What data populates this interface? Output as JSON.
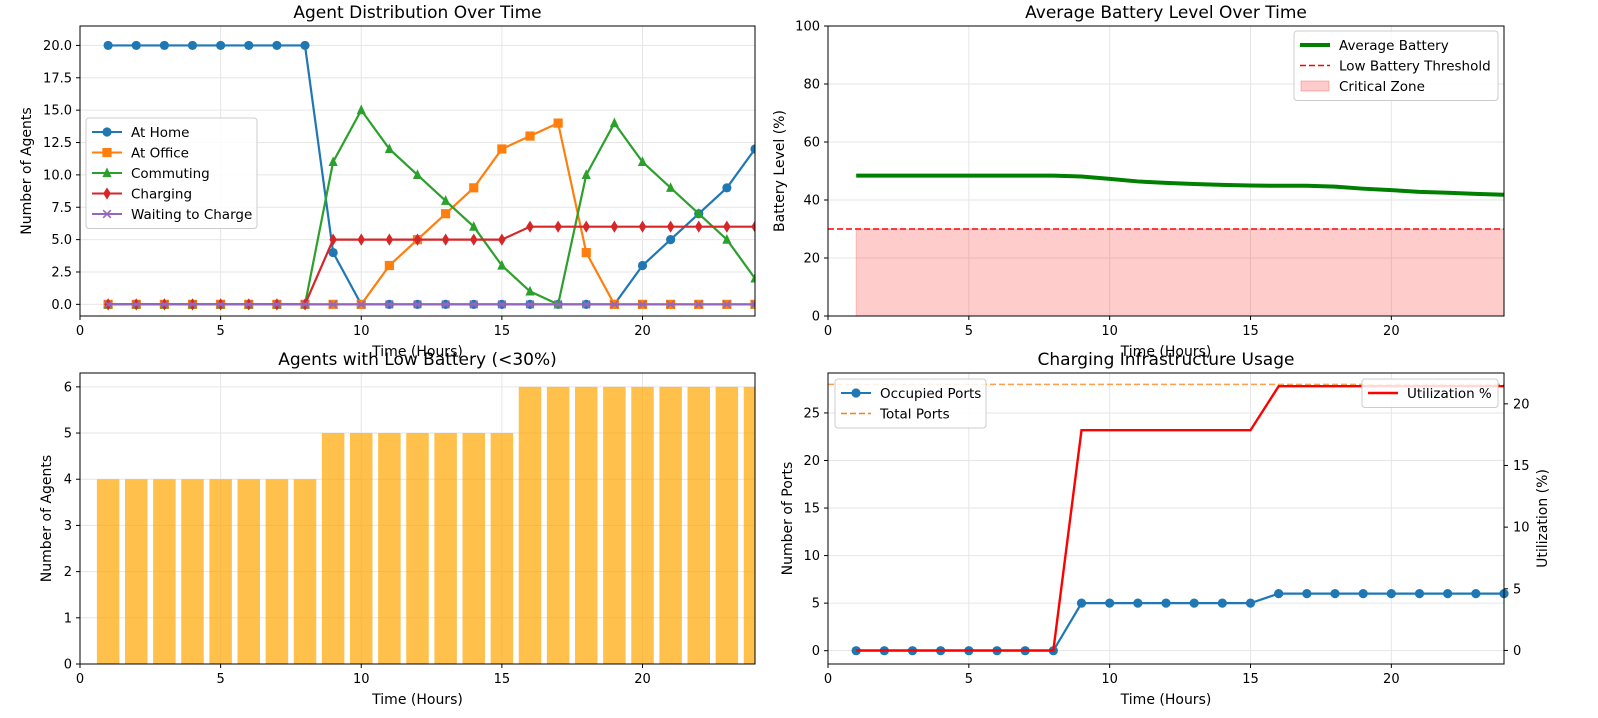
{
  "chart_data": [
    {
      "id": "dist",
      "type": "line",
      "title": "Agent Distribution Over Time",
      "xlabel": "Time (Hours)",
      "ylabel": "Number of Agents",
      "xlim": [
        0,
        24
      ],
      "ylim": [
        -0.9,
        21.5
      ],
      "xticks": [
        0,
        5,
        10,
        15,
        20
      ],
      "yticks": [
        0,
        2.5,
        5,
        7.5,
        10,
        12.5,
        15,
        17.5,
        20
      ],
      "ytick_labels": [
        "0.0",
        "2.5",
        "5.0",
        "7.5",
        "10.0",
        "12.5",
        "15.0",
        "17.5",
        "20.0"
      ],
      "grid": true,
      "legend_position": "center-left",
      "x": [
        1,
        2,
        3,
        4,
        5,
        6,
        7,
        8,
        9,
        10,
        11,
        12,
        13,
        14,
        15,
        16,
        17,
        18,
        19,
        20,
        21,
        22,
        23,
        24
      ],
      "series": [
        {
          "name": "At Home",
          "color": "#1f77b4",
          "marker": "circle",
          "values": [
            20,
            20,
            20,
            20,
            20,
            20,
            20,
            20,
            4,
            0,
            0,
            0,
            0,
            0,
            0,
            0,
            0,
            0,
            0,
            3,
            5,
            7,
            9,
            12
          ]
        },
        {
          "name": "At Office",
          "color": "#ff7f0e",
          "marker": "square",
          "values": [
            0,
            0,
            0,
            0,
            0,
            0,
            0,
            0,
            0,
            0,
            3,
            5,
            7,
            9,
            12,
            13,
            14,
            4,
            0,
            0,
            0,
            0,
            0,
            0
          ]
        },
        {
          "name": "Commuting",
          "color": "#2ca02c",
          "marker": "triangle",
          "values": [
            0,
            0,
            0,
            0,
            0,
            0,
            0,
            0,
            11,
            15,
            12,
            10,
            8,
            6,
            3,
            1,
            0,
            10,
            14,
            11,
            9,
            7,
            5,
            2
          ]
        },
        {
          "name": "Charging",
          "color": "#d62728",
          "marker": "diamond",
          "values": [
            0,
            0,
            0,
            0,
            0,
            0,
            0,
            0,
            5,
            5,
            5,
            5,
            5,
            5,
            5,
            6,
            6,
            6,
            6,
            6,
            6,
            6,
            6,
            6
          ]
        },
        {
          "name": "Waiting to Charge",
          "color": "#9467bd",
          "marker": "x",
          "values": [
            0,
            0,
            0,
            0,
            0,
            0,
            0,
            0,
            0,
            0,
            0,
            0,
            0,
            0,
            0,
            0,
            0,
            0,
            0,
            0,
            0,
            0,
            0,
            0
          ]
        }
      ]
    },
    {
      "id": "battery",
      "type": "line",
      "title": "Average Battery Level Over Time",
      "xlabel": "Time (Hours)",
      "ylabel": "Battery Level (%)",
      "xlim": [
        0,
        24
      ],
      "ylim": [
        0,
        100
      ],
      "xticks": [
        0,
        5,
        10,
        15,
        20
      ],
      "yticks": [
        0,
        20,
        40,
        60,
        80,
        100
      ],
      "grid": true,
      "legend_position": "top-right",
      "x": [
        1,
        2,
        3,
        4,
        5,
        6,
        7,
        8,
        9,
        10,
        11,
        12,
        13,
        14,
        15,
        16,
        17,
        18,
        19,
        20,
        21,
        22,
        23,
        24
      ],
      "series": [
        {
          "name": "Average Battery",
          "color": "#008000",
          "style": "solid",
          "values": [
            48.4,
            48.4,
            48.4,
            48.4,
            48.4,
            48.4,
            48.4,
            48.4,
            48.1,
            47.3,
            46.4,
            45.9,
            45.5,
            45.2,
            45.0,
            44.9,
            44.9,
            44.6,
            43.9,
            43.4,
            42.8,
            42.5,
            42.1,
            41.8
          ]
        },
        {
          "name": "Low Battery Threshold",
          "color": "#ff0000",
          "style": "dashed",
          "constant": 30
        },
        {
          "name": "Critical Zone",
          "color": "#ff0000",
          "style": "fill",
          "from": 0,
          "to": 30,
          "x_range": [
            1,
            24
          ]
        }
      ]
    },
    {
      "id": "lowbat",
      "type": "bar",
      "title": "Agents with Low Battery (<30%)",
      "xlabel": "Time (Hours)",
      "ylabel": "Number of Agents",
      "xlim": [
        0,
        24
      ],
      "ylim": [
        0,
        6.3
      ],
      "xticks": [
        0,
        5,
        10,
        15,
        20
      ],
      "yticks": [
        0,
        1,
        2,
        3,
        4,
        5,
        6
      ],
      "grid": true,
      "color": "#ffa500",
      "categories": [
        1,
        2,
        3,
        4,
        5,
        6,
        7,
        8,
        9,
        10,
        11,
        12,
        13,
        14,
        15,
        16,
        17,
        18,
        19,
        20,
        21,
        22,
        23,
        24
      ],
      "values": [
        4,
        4,
        4,
        4,
        4,
        4,
        4,
        4,
        5,
        5,
        5,
        5,
        5,
        5,
        5,
        6,
        6,
        6,
        6,
        6,
        6,
        6,
        6,
        6
      ]
    },
    {
      "id": "infra",
      "type": "line",
      "title": "Charging Infrastructure Usage",
      "xlabel": "Time (Hours)",
      "ylabel": "Number of Ports",
      "ylabel_right": "Utilization (%)",
      "xlim": [
        0,
        24
      ],
      "ylim": [
        -1.4,
        29.2
      ],
      "ylim_right": [
        -1.1,
        22.5
      ],
      "xticks": [
        0,
        5,
        10,
        15,
        20
      ],
      "yticks": [
        0,
        5,
        10,
        15,
        20,
        25
      ],
      "yticks_right": [
        0,
        5,
        10,
        15,
        20
      ],
      "grid": true,
      "legend_position": "top-left",
      "legend_right_position": "top-right",
      "x": [
        1,
        2,
        3,
        4,
        5,
        6,
        7,
        8,
        9,
        10,
        11,
        12,
        13,
        14,
        15,
        16,
        17,
        18,
        19,
        20,
        21,
        22,
        23,
        24
      ],
      "series": [
        {
          "name": "Occupied Ports",
          "color": "#1f77b4",
          "marker": "circle",
          "axis": "left",
          "values": [
            0,
            0,
            0,
            0,
            0,
            0,
            0,
            0,
            5,
            5,
            5,
            5,
            5,
            5,
            5,
            6,
            6,
            6,
            6,
            6,
            6,
            6,
            6,
            6
          ]
        },
        {
          "name": "Total Ports",
          "color": "#ff7f0e",
          "style": "dashed",
          "axis": "left",
          "constant": 28
        },
        {
          "name": "Utilization %",
          "color": "#ff0000",
          "axis": "right",
          "values": [
            0,
            0,
            0,
            0,
            0,
            0,
            0,
            0,
            17.86,
            17.86,
            17.86,
            17.86,
            17.86,
            17.86,
            17.86,
            21.43,
            21.43,
            21.43,
            21.43,
            21.43,
            21.43,
            21.43,
            21.43,
            21.43
          ]
        }
      ]
    }
  ]
}
